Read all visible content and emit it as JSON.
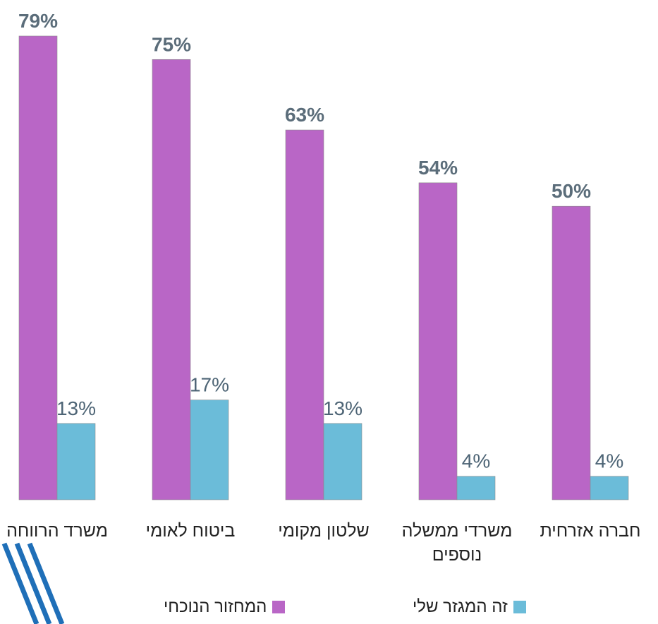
{
  "chart_data": {
    "type": "bar",
    "categories": [
      "משרד הרווחה",
      "ביטוח לאומי",
      "שלטון מקומי",
      "משרדי ממשלה נוספים",
      "חברה אזרחית"
    ],
    "series": [
      {
        "name": "המחזור הנוכחי",
        "values": [
          79,
          75,
          63,
          54,
          50
        ],
        "labels": [
          "79%",
          "75%",
          "63%",
          "54%",
          "50%"
        ],
        "color": "#b966c6",
        "label_color": "#5b6d7a"
      },
      {
        "name": "זה המגזר שלי",
        "values": [
          13,
          17,
          13,
          4,
          4
        ],
        "labels": [
          "13%",
          "17%",
          "13%",
          "4%",
          "4%"
        ],
        "color": "#6bbcd9",
        "label_color": "#4d6475"
      }
    ],
    "ylim": [
      0,
      79
    ]
  },
  "decor": {
    "stripe_color": "#1f6fb8"
  }
}
